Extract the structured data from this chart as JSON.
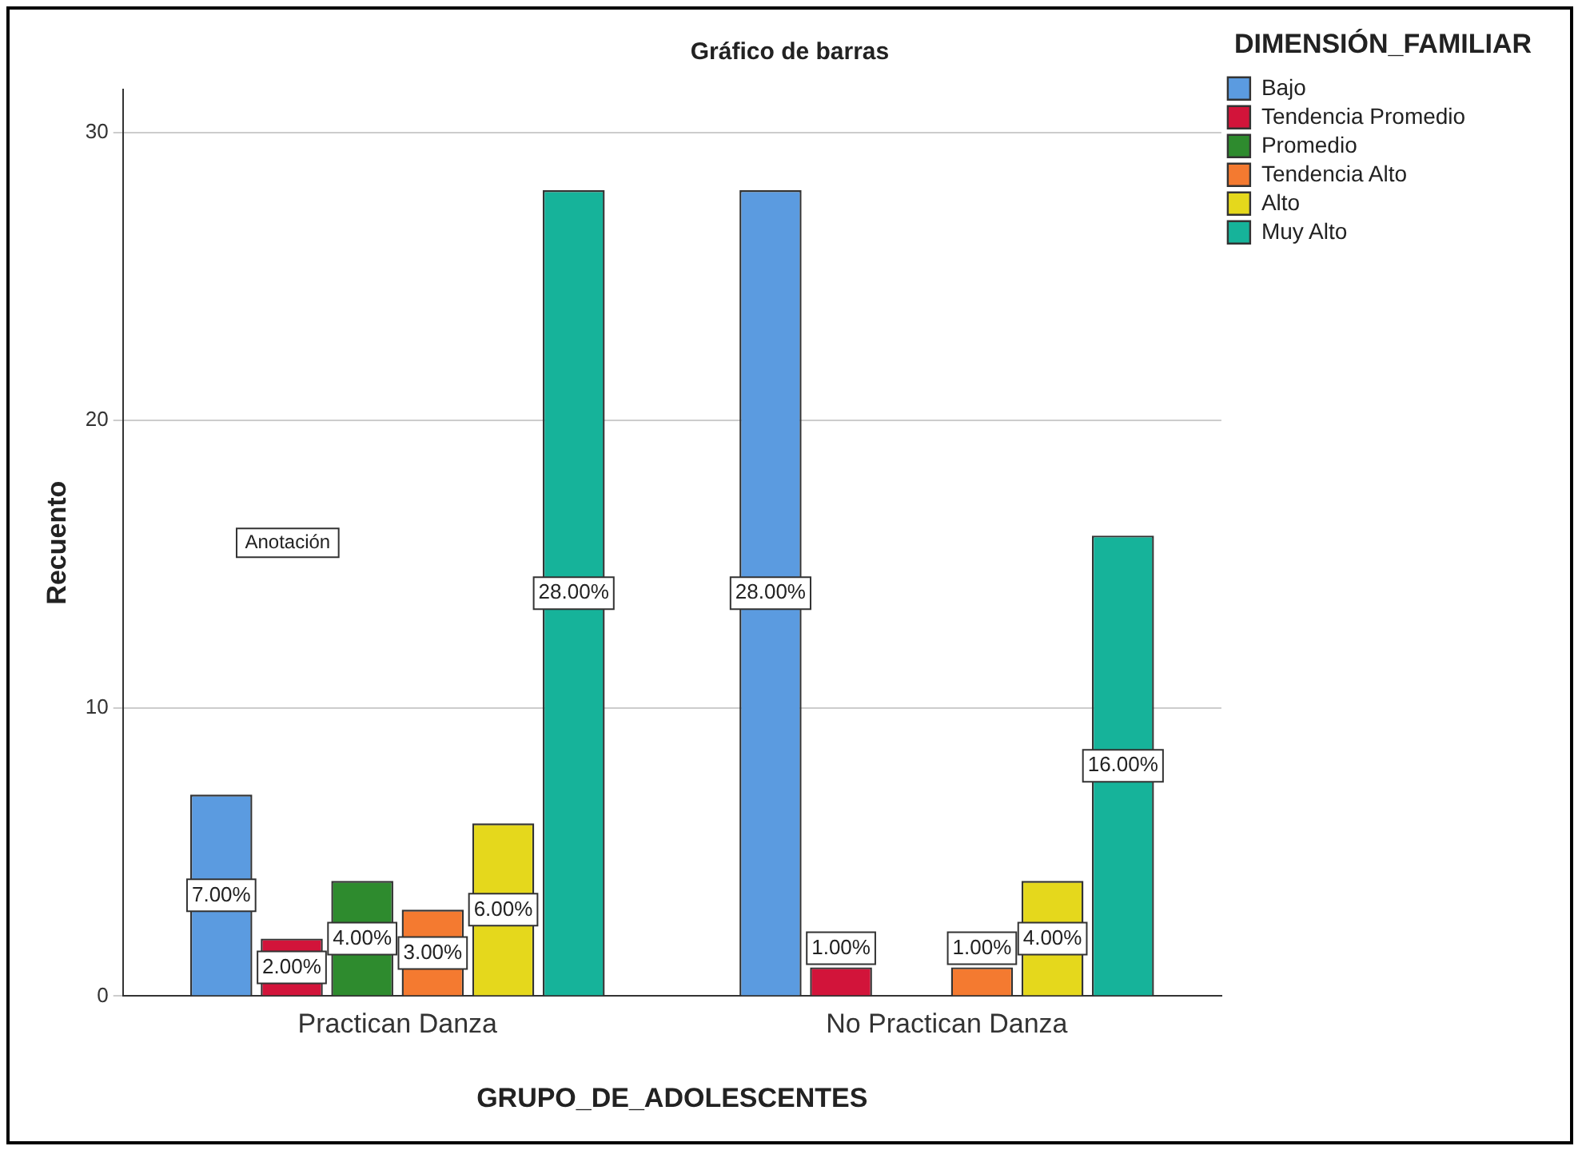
{
  "chart_data": {
    "type": "bar",
    "title": "Gráfico de barras",
    "xlabel": "GRUPO_DE_ADOLESCENTES",
    "ylabel": "Recuento",
    "legend_title": "DIMENSIÓN_FAMILIAR",
    "categories": [
      "Practican Danza",
      "No Practican Danza"
    ],
    "series": [
      {
        "name": "Bajo",
        "color": "#5b9be0",
        "values": [
          7,
          28
        ],
        "value_labels": [
          "7.00%",
          "28.00%"
        ]
      },
      {
        "name": "Tendencia Promedio",
        "color": "#d2143a",
        "values": [
          2,
          1
        ],
        "value_labels": [
          "2.00%",
          "1.00%"
        ]
      },
      {
        "name": "Promedio",
        "color": "#2e8b2e",
        "values": [
          4,
          null
        ],
        "value_labels": [
          "4.00%",
          null
        ]
      },
      {
        "name": "Tendencia Alto",
        "color": "#f47a30",
        "values": [
          3,
          1
        ],
        "value_labels": [
          "3.00%",
          "1.00%"
        ]
      },
      {
        "name": "Alto",
        "color": "#e5d81c",
        "values": [
          6,
          4
        ],
        "value_labels": [
          "6.00%",
          "4.00%"
        ]
      },
      {
        "name": "Muy Alto",
        "color": "#16b39a",
        "values": [
          28,
          16
        ],
        "value_labels": [
          "28.00%",
          "16.00%"
        ]
      }
    ],
    "ylim": [
      0,
      31.5
    ],
    "yticks": [
      0,
      10,
      20,
      30
    ],
    "grid": "y",
    "legend": "top right",
    "annotations": [
      "Anotación"
    ]
  }
}
